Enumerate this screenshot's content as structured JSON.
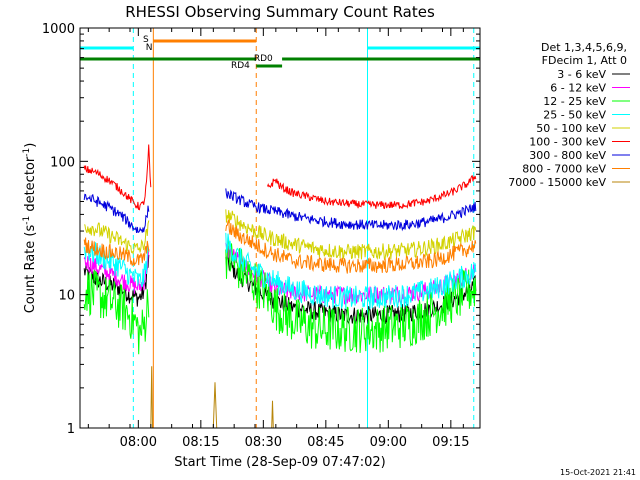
{
  "chart_data": {
    "type": "line",
    "title": "RHESSI Observing Summary Count Rates",
    "xlabel": "Start Time (28-Sep-09 07:47:02)",
    "ylabel": "Count Rate (s⁻¹ detector⁻¹)",
    "ylabel_parts": {
      "main": "Count Rate (s",
      "sup1": "-1",
      "mid": " detector",
      "sup2": "-1",
      "end": ")"
    },
    "yscale": "log",
    "ylim": [
      1,
      1000
    ],
    "xlim_minutes": [
      -1,
      95
    ],
    "x_ticks": [
      {
        "m": 13,
        "label": "08:00"
      },
      {
        "m": 28,
        "label": "08:15"
      },
      {
        "m": 43,
        "label": "08:30"
      },
      {
        "m": 58,
        "label": "08:45"
      },
      {
        "m": 73,
        "label": "09:00"
      },
      {
        "m": 88,
        "label": "09:15"
      }
    ],
    "y_ticks": [
      {
        "v": 1,
        "label": "1"
      },
      {
        "v": 10,
        "label": "10"
      },
      {
        "v": 100,
        "label": "100"
      },
      {
        "v": 1000,
        "label": "1000"
      }
    ],
    "legend_title": [
      "Det 1,3,4,5,6,9,",
      "FDecim 1, Att 0"
    ],
    "legend": [
      {
        "label": "3 - 6 keV",
        "color": "#000000"
      },
      {
        "label": "6 - 12 keV",
        "color": "#ff00ff"
      },
      {
        "label": "12 - 25 keV",
        "color": "#00ff00"
      },
      {
        "label": "25 - 50 keV",
        "color": "#00ffff"
      },
      {
        "label": "50 - 100 keV",
        "color": "#d2d200"
      },
      {
        "label": "100 - 300 keV",
        "color": "#ff0000"
      },
      {
        "label": "300 - 800 keV",
        "color": "#0000dd"
      },
      {
        "label": "800 - 7000 keV",
        "color": "#ff7f00"
      },
      {
        "label": "7000 - 15000 keV",
        "color": "#b8860b"
      }
    ],
    "series": [
      {
        "name": "3 - 6 keV",
        "color": "#000000",
        "noise": 0.07,
        "segments": [
          [
            [
              0,
              15
            ],
            [
              3,
              13
            ],
            [
              6,
              12
            ],
            [
              9,
              11
            ],
            [
              11,
              10
            ],
            [
              12.5,
              9.5
            ],
            [
              13.2,
              9.5
            ],
            [
              14,
              10
            ],
            [
              14.5,
              11
            ],
            [
              15.5,
              18
            ]
          ],
          [
            [
              34,
              18
            ],
            [
              37,
              14
            ],
            [
              40,
              12
            ],
            [
              43,
              10
            ],
            [
              46,
              9
            ],
            [
              50,
              8
            ],
            [
              56,
              7.5
            ],
            [
              62,
              7
            ],
            [
              70,
              7
            ],
            [
              78,
              7.3
            ],
            [
              84,
              8
            ],
            [
              88,
              9
            ],
            [
              92,
              10.5
            ],
            [
              94,
              12
            ]
          ]
        ]
      },
      {
        "name": "6 - 12 keV",
        "color": "#ff00ff",
        "noise": 0.07,
        "segments": [
          [
            [
              0,
              18
            ],
            [
              3,
              16
            ],
            [
              6,
              14.5
            ],
            [
              9,
              13
            ],
            [
              11,
              12
            ],
            [
              12.5,
              11.5
            ],
            [
              13.2,
              11.5
            ],
            [
              14,
              12
            ],
            [
              14.5,
              13
            ],
            [
              15.5,
              20
            ]
          ],
          [
            [
              34,
              22
            ],
            [
              37,
              18
            ],
            [
              40,
              15
            ],
            [
              43,
              13
            ],
            [
              46,
              11
            ],
            [
              50,
              10.5
            ],
            [
              56,
              10
            ],
            [
              62,
              10
            ],
            [
              70,
              10
            ],
            [
              78,
              10.2
            ],
            [
              84,
              11
            ],
            [
              88,
              12.5
            ],
            [
              92,
              14
            ],
            [
              94,
              16
            ]
          ]
        ]
      },
      {
        "name": "12 - 25 keV",
        "color": "#00ff00",
        "noise": 0.18,
        "segments": [
          [
            [
              0,
              11
            ],
            [
              3,
              10
            ],
            [
              6,
              9
            ],
            [
              9,
              8
            ],
            [
              11,
              7
            ],
            [
              12.5,
              6
            ],
            [
              13.2,
              5
            ],
            [
              14,
              5.5
            ],
            [
              14.5,
              6
            ],
            [
              15.5,
              10
            ]
          ],
          [
            [
              34,
              20
            ],
            [
              37,
              16
            ],
            [
              40,
              13
            ],
            [
              43,
              11
            ],
            [
              46,
              8
            ],
            [
              50,
              6.5
            ],
            [
              56,
              5.5
            ],
            [
              62,
              5.5
            ],
            [
              70,
              5.5
            ],
            [
              78,
              6
            ],
            [
              84,
              7.5
            ],
            [
              88,
              9
            ],
            [
              92,
              10.5
            ],
            [
              94,
              11.5
            ]
          ]
        ]
      },
      {
        "name": "25 - 50 keV",
        "color": "#00ffff",
        "noise": 0.09,
        "segments": [
          [
            [
              0,
              22
            ],
            [
              3,
              20
            ],
            [
              6,
              18
            ],
            [
              9,
              16
            ],
            [
              11,
              14
            ],
            [
              12.5,
              13
            ],
            [
              13.2,
              12.5
            ],
            [
              14,
              13
            ],
            [
              14.5,
              14
            ],
            [
              15.5,
              22
            ]
          ],
          [
            [
              34,
              25
            ],
            [
              37,
              19
            ],
            [
              40,
              16
            ],
            [
              43,
              14
            ],
            [
              46,
              12.5
            ],
            [
              50,
              11
            ],
            [
              56,
              10
            ],
            [
              62,
              9.5
            ],
            [
              70,
              9.5
            ],
            [
              78,
              10
            ],
            [
              84,
              11
            ],
            [
              88,
              12.5
            ],
            [
              92,
              14
            ],
            [
              94,
              15
            ]
          ]
        ]
      },
      {
        "name": "50 - 100 keV",
        "color": "#d2d200",
        "noise": 0.06,
        "segments": [
          [
            [
              0,
              33
            ],
            [
              3,
              31
            ],
            [
              6,
              28
            ],
            [
              9,
              25
            ],
            [
              11,
              23
            ],
            [
              12.5,
              22
            ],
            [
              13.2,
              22
            ],
            [
              14,
              23
            ],
            [
              14.5,
              25
            ],
            [
              15.5,
              32
            ]
          ],
          [
            [
              34,
              40
            ],
            [
              37,
              35
            ],
            [
              40,
              31
            ],
            [
              43,
              28
            ],
            [
              46,
              26
            ],
            [
              50,
              24
            ],
            [
              56,
              22
            ],
            [
              62,
              21
            ],
            [
              70,
              21
            ],
            [
              78,
              21.5
            ],
            [
              84,
              23
            ],
            [
              88,
              25
            ],
            [
              92,
              28
            ],
            [
              94,
              30
            ]
          ]
        ]
      },
      {
        "name": "100 - 300 keV",
        "color": "#ff0000",
        "noise": 0.03,
        "segments": [
          [
            [
              0,
              88
            ],
            [
              3,
              82
            ],
            [
              6,
              72
            ],
            [
              9,
              60
            ],
            [
              11,
              52
            ],
            [
              12.5,
              47
            ],
            [
              13.2,
              46
            ],
            [
              14,
              47
            ],
            [
              14.5,
              52
            ],
            [
              15,
              70
            ],
            [
              15.5,
              128
            ],
            [
              16,
              60
            ]
          ],
          [
            [
              44,
              63
            ],
            [
              46,
              73
            ],
            [
              47,
              65
            ],
            [
              50,
              58
            ],
            [
              54,
              54
            ],
            [
              58,
              50
            ],
            [
              64,
              48
            ],
            [
              70,
              47
            ],
            [
              76,
              47
            ],
            [
              82,
              50
            ],
            [
              88,
              58
            ],
            [
              92,
              68
            ],
            [
              94,
              78
            ]
          ]
        ]
      },
      {
        "name": "300 - 800 keV",
        "color": "#0000dd",
        "noise": 0.04,
        "segments": [
          [
            [
              0,
              55
            ],
            [
              3,
              50
            ],
            [
              6,
              45
            ],
            [
              9,
              39
            ],
            [
              11,
              34
            ],
            [
              12.5,
              31
            ],
            [
              13.2,
              30
            ],
            [
              14,
              31
            ],
            [
              14.5,
              33
            ],
            [
              15.5,
              45
            ]
          ],
          [
            [
              34,
              58
            ],
            [
              37,
              52
            ],
            [
              40,
              47
            ],
            [
              43,
              44
            ],
            [
              46,
              42
            ],
            [
              50,
              39
            ],
            [
              56,
              36
            ],
            [
              62,
              34
            ],
            [
              70,
              33
            ],
            [
              78,
              33.5
            ],
            [
              84,
              36
            ],
            [
              88,
              39
            ],
            [
              92,
              43
            ],
            [
              94,
              46
            ]
          ]
        ]
      },
      {
        "name": "800 - 7000 keV",
        "color": "#ff7f00",
        "noise": 0.06,
        "segments": [
          [
            [
              0,
              24
            ],
            [
              3,
              22
            ],
            [
              6,
              21
            ],
            [
              9,
              20
            ],
            [
              11,
              19
            ],
            [
              12.5,
              18
            ],
            [
              13.2,
              18
            ],
            [
              14,
              18.5
            ],
            [
              14.5,
              19.5
            ],
            [
              15.5,
              24
            ]
          ],
          [
            [
              34,
              33
            ],
            [
              37,
              28
            ],
            [
              40,
              25
            ],
            [
              43,
              22
            ],
            [
              46,
              20
            ],
            [
              50,
              18
            ],
            [
              56,
              17
            ],
            [
              62,
              16.5
            ],
            [
              70,
              16.5
            ],
            [
              78,
              17
            ],
            [
              84,
              18
            ],
            [
              88,
              20
            ],
            [
              92,
              22
            ],
            [
              94,
              24
            ]
          ]
        ]
      },
      {
        "name": "7000 - 15000 keV",
        "color": "#b8860b",
        "noise": 0,
        "segments": [
          [
            [
              16,
              1
            ],
            [
              16.2,
              2.9
            ],
            [
              16.4,
              1
            ]
          ],
          [
            [
              31,
              1
            ],
            [
              31.4,
              2.2
            ],
            [
              31.8,
              1
            ]
          ],
          [
            [
              45,
              1
            ],
            [
              45.2,
              1.6
            ],
            [
              45.4,
              1
            ]
          ]
        ]
      }
    ],
    "annotations": [
      {
        "text": "S",
        "color": "#ff7f00"
      },
      {
        "text": "N",
        "color": "#00ffff"
      },
      {
        "text": "RD0",
        "color": "#008000"
      },
      {
        "text": "RD4",
        "color": "#008000"
      }
    ],
    "timestamp": "15-Oct-2021 21:41"
  }
}
